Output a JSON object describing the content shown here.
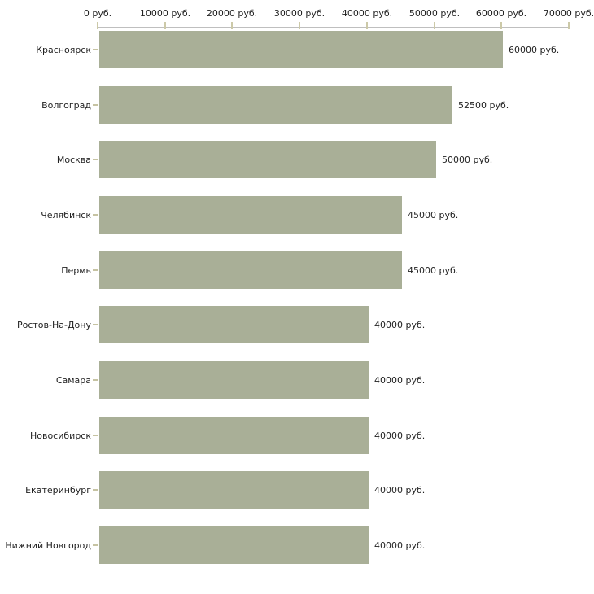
{
  "chart_data": {
    "type": "bar",
    "orientation": "horizontal",
    "title": "",
    "xlabel": "",
    "ylabel": "",
    "unit": "руб.",
    "categories": [
      "Красноярск",
      "Волгоград",
      "Москва",
      "Челябинск",
      "Пермь",
      "Ростов-На-Дону",
      "Самара",
      "Новосибирск",
      "Екатеринбург",
      "Нижний Новгород"
    ],
    "values": [
      60000,
      52500,
      50000,
      45000,
      45000,
      40000,
      40000,
      40000,
      40000,
      40000
    ],
    "bar_value_labels": [
      "60000 руб.",
      "52500 руб.",
      "50000 руб.",
      "45000 руб.",
      "45000 руб.",
      "40000 руб.",
      "40000 руб.",
      "40000 руб.",
      "40000 руб.",
      "40000 руб."
    ],
    "x_axis": {
      "range": [
        0,
        70000
      ],
      "ticks": [
        0,
        10000,
        20000,
        30000,
        40000,
        50000,
        60000,
        70000
      ],
      "tick_labels": [
        "0 руб.",
        "10000 руб.",
        "20000 руб.",
        "30000 руб.",
        "40000 руб.",
        "50000 руб.",
        "60000 руб.",
        "70000 руб."
      ]
    },
    "grid": false,
    "legend": null,
    "colors": {
      "bar": "#a9af97",
      "axis_line": "#bfbfbf",
      "axis_tick": "#ccc9a8",
      "category_tick": "#c6c3a2",
      "text": "#222222",
      "background": "#ffffff"
    }
  }
}
